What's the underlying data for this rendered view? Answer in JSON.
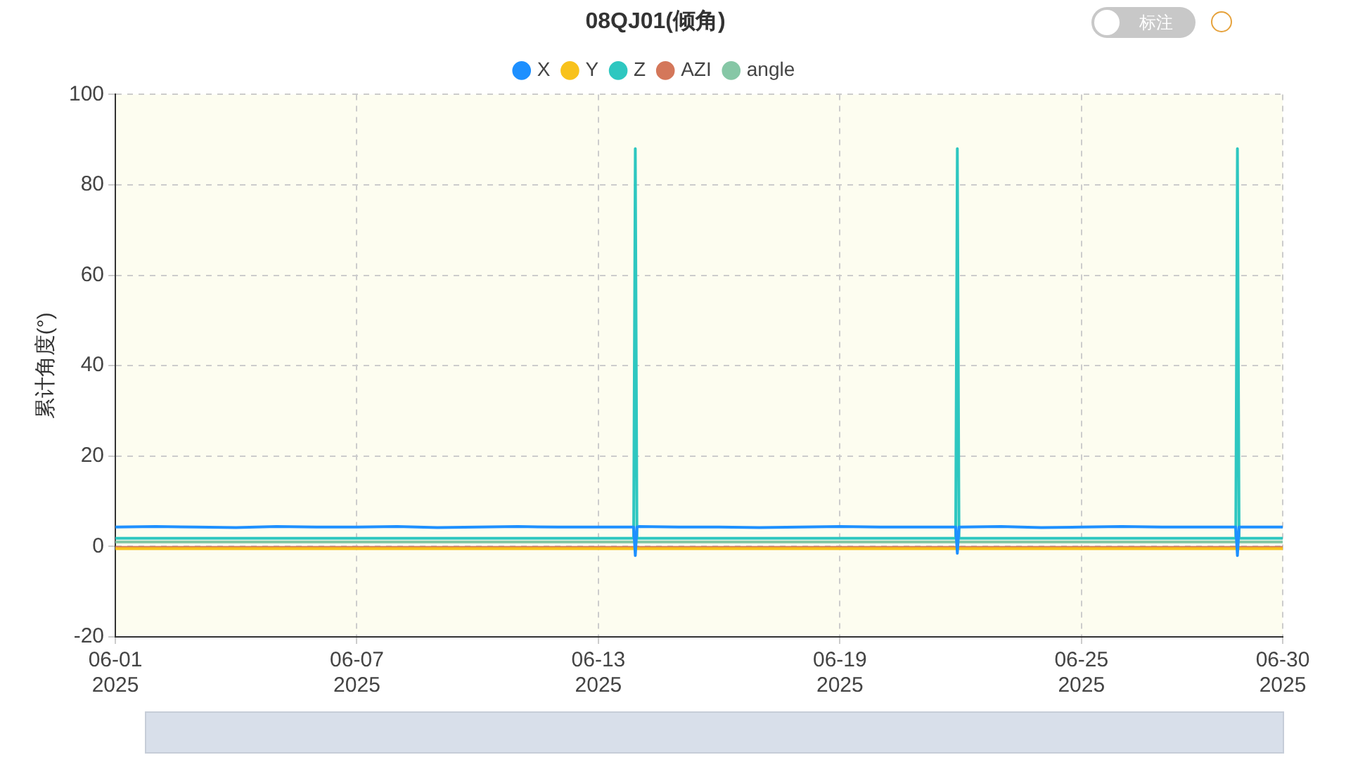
{
  "chart_data": {
    "type": "line",
    "title": "08QJ01(倾角)",
    "ylabel": "累计角度(°)",
    "annotations": [
      "标注"
    ],
    "x": [
      "2025-06-01",
      "2025-06-02",
      "2025-06-03",
      "2025-06-04",
      "2025-06-05",
      "2025-06-06",
      "2025-06-07",
      "2025-06-08",
      "2025-06-09",
      "2025-06-10",
      "2025-06-11",
      "2025-06-12",
      "2025-06-13",
      "2025-06-13T21:00",
      "2025-06-13T22:00",
      "2025-06-13T23:00",
      "2025-06-14",
      "2025-06-15",
      "2025-06-16",
      "2025-06-17",
      "2025-06-18",
      "2025-06-19",
      "2025-06-20",
      "2025-06-21",
      "2025-06-21T21:00",
      "2025-06-21T22:00",
      "2025-06-21T23:00",
      "2025-06-22",
      "2025-06-23",
      "2025-06-24",
      "2025-06-25",
      "2025-06-26",
      "2025-06-27",
      "2025-06-28",
      "2025-06-28T20:00",
      "2025-06-28T21:00",
      "2025-06-28T22:00",
      "2025-06-29",
      "2025-06-30"
    ],
    "series": [
      {
        "name": "X",
        "color": "#1e90ff",
        "values": [
          4.3,
          4.4,
          4.3,
          4.2,
          4.4,
          4.3,
          4.3,
          4.4,
          4.2,
          4.3,
          4.4,
          4.3,
          4.3,
          4.3,
          -2,
          4.3,
          4.4,
          4.3,
          4.3,
          4.2,
          4.3,
          4.4,
          4.3,
          4.3,
          4.3,
          -1.5,
          4.3,
          4.3,
          4.4,
          4.2,
          4.3,
          4.4,
          4.3,
          4.3,
          4.3,
          -2,
          4.3,
          4.3,
          4.3
        ]
      },
      {
        "name": "Y",
        "color": "#f8c21c",
        "values": [
          -0.5,
          -0.5,
          -0.5,
          -0.5,
          -0.5,
          -0.5,
          -0.5,
          -0.5,
          -0.5,
          -0.5,
          -0.5,
          -0.5,
          -0.5,
          -0.5,
          -0.5,
          -0.5,
          -0.5,
          -0.5,
          -0.5,
          -0.5,
          -0.5,
          -0.5,
          -0.5,
          -0.5,
          -0.5,
          -0.5,
          -0.5,
          -0.5,
          -0.5,
          -0.5,
          -0.5,
          -0.5,
          -0.5,
          -0.5,
          -0.5,
          -0.5,
          -0.5,
          -0.5,
          -0.5
        ]
      },
      {
        "name": "Z",
        "color": "#2ec7c0",
        "values": [
          1.8,
          1.8,
          1.8,
          1.8,
          1.8,
          1.8,
          1.8,
          1.8,
          1.8,
          1.8,
          1.8,
          1.8,
          1.8,
          1.8,
          88,
          1.8,
          1.8,
          1.8,
          1.8,
          1.8,
          1.8,
          1.8,
          1.8,
          1.8,
          1.8,
          88,
          1.8,
          1.8,
          1.8,
          1.8,
          1.8,
          1.8,
          1.8,
          1.8,
          1.8,
          88,
          1.8,
          1.8,
          1.8
        ]
      },
      {
        "name": "AZI",
        "color": "#d4775a",
        "values": [
          -0.2,
          -0.2,
          -0.2,
          -0.2,
          -0.2,
          -0.2,
          -0.2,
          -0.2,
          -0.2,
          -0.2,
          -0.2,
          -0.2,
          -0.2,
          -0.2,
          -0.2,
          -0.2,
          -0.2,
          -0.2,
          -0.2,
          -0.2,
          -0.2,
          -0.2,
          -0.2,
          -0.2,
          -0.2,
          -0.2,
          -0.2,
          -0.2,
          -0.2,
          -0.2,
          -0.2,
          -0.2,
          -0.2,
          -0.2,
          -0.2,
          -0.2,
          -0.2,
          -0.2,
          -0.2
        ]
      },
      {
        "name": "angle",
        "color": "#86c7a6",
        "values": [
          1,
          1,
          1,
          1,
          1,
          1,
          1,
          1,
          1,
          1,
          1,
          1,
          1,
          1,
          1,
          1,
          1,
          1,
          1,
          1,
          1,
          1,
          1,
          1,
          1,
          1,
          1,
          1,
          1,
          1,
          1,
          1,
          1,
          1,
          1,
          1,
          1,
          1,
          1
        ]
      }
    ],
    "xlim": [
      "2025-06-01",
      "2025-06-30"
    ],
    "xticks": [
      {
        "value": "2025-06-01",
        "label": "06-01\n2025"
      },
      {
        "value": "2025-06-07",
        "label": "06-07\n2025"
      },
      {
        "value": "2025-06-13",
        "label": "06-13\n2025"
      },
      {
        "value": "2025-06-19",
        "label": "06-19\n2025"
      },
      {
        "value": "2025-06-25",
        "label": "06-25\n2025"
      },
      {
        "value": "2025-06-30",
        "label": "06-30\n2025"
      }
    ],
    "ylim": [
      -20,
      100
    ],
    "yticks": [
      -20,
      0,
      20,
      40,
      60,
      80,
      100
    ],
    "grid": true,
    "legend": "top",
    "marker": "none",
    "line_style": "solid"
  }
}
